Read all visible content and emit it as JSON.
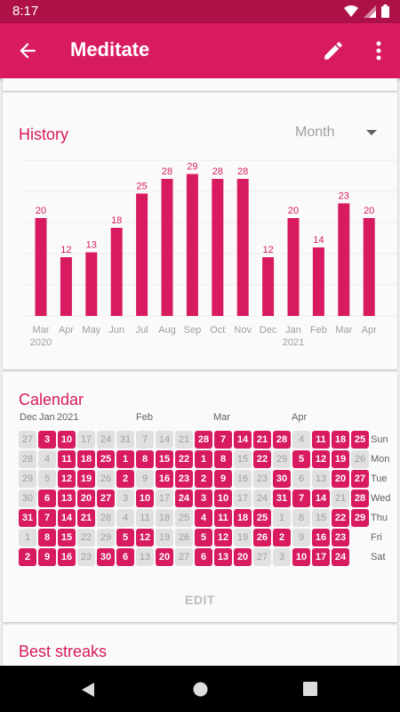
{
  "status_bar": {
    "time": "8:17"
  },
  "app_bar": {
    "title": "Meditate",
    "back_icon": "arrow-left-icon",
    "edit_icon": "pencil-icon",
    "more_icon": "more-vert-icon"
  },
  "history": {
    "title": "History",
    "period_select": "Month",
    "chart_data": {
      "type": "bar",
      "categories": [
        "Mar",
        "Apr",
        "May",
        "Jun",
        "Jul",
        "Aug",
        "Sep",
        "Oct",
        "Nov",
        "Dec",
        "Jan",
        "Feb",
        "Mar",
        "Apr"
      ],
      "year_labels": [
        "2020",
        "",
        "",
        "",
        "",
        "",
        "",
        "",
        "",
        "",
        "2021",
        "",
        "",
        ""
      ],
      "values": [
        20,
        12,
        13,
        18,
        25,
        28,
        29,
        28,
        28,
        12,
        20,
        14,
        23,
        20
      ],
      "ylim": [
        0,
        30
      ],
      "bar_color": "#d81b60",
      "grid": true
    }
  },
  "calendar": {
    "title": "Calendar",
    "month_labels": [
      "Dec",
      "Jan",
      "2021",
      "Feb",
      "Mar",
      "Apr"
    ],
    "weekdays": [
      "Sun",
      "Mon",
      "Tue",
      "Wed",
      "Thu",
      "Fri",
      "Sat"
    ],
    "rows": [
      [
        [
          "27",
          0
        ],
        [
          "3",
          1
        ],
        [
          "10",
          1
        ],
        [
          "17",
          0
        ],
        [
          "24",
          0
        ],
        [
          "31",
          0
        ],
        [
          "7",
          0
        ],
        [
          "14",
          0
        ],
        [
          "21",
          0
        ],
        [
          "28",
          1
        ],
        [
          "7",
          1
        ],
        [
          "14",
          1
        ],
        [
          "21",
          1
        ],
        [
          "28",
          1
        ],
        [
          "4",
          0
        ],
        [
          "11",
          1
        ],
        [
          "18",
          1
        ],
        [
          "25",
          1
        ]
      ],
      [
        [
          "28",
          0
        ],
        [
          "4",
          0
        ],
        [
          "11",
          1
        ],
        [
          "18",
          1
        ],
        [
          "25",
          1
        ],
        [
          "1",
          1
        ],
        [
          "8",
          1
        ],
        [
          "15",
          1
        ],
        [
          "22",
          1
        ],
        [
          "1",
          1
        ],
        [
          "8",
          1
        ],
        [
          "15",
          0
        ],
        [
          "22",
          1
        ],
        [
          "29",
          0
        ],
        [
          "5",
          1
        ],
        [
          "12",
          1
        ],
        [
          "19",
          1
        ],
        [
          "26",
          0
        ]
      ],
      [
        [
          "29",
          0
        ],
        [
          "5",
          0
        ],
        [
          "12",
          1
        ],
        [
          "19",
          1
        ],
        [
          "26",
          0
        ],
        [
          "2",
          1
        ],
        [
          "9",
          0
        ],
        [
          "16",
          1
        ],
        [
          "23",
          1
        ],
        [
          "2",
          1
        ],
        [
          "9",
          1
        ],
        [
          "16",
          0
        ],
        [
          "23",
          0
        ],
        [
          "30",
          1
        ],
        [
          "6",
          0
        ],
        [
          "13",
          0
        ],
        [
          "20",
          1
        ],
        [
          "27",
          1
        ]
      ],
      [
        [
          "30",
          0
        ],
        [
          "6",
          1
        ],
        [
          "13",
          1
        ],
        [
          "20",
          1
        ],
        [
          "27",
          1
        ],
        [
          "3",
          0
        ],
        [
          "10",
          1
        ],
        [
          "17",
          0
        ],
        [
          "24",
          1
        ],
        [
          "3",
          1
        ],
        [
          "10",
          1
        ],
        [
          "17",
          0
        ],
        [
          "24",
          0
        ],
        [
          "31",
          1
        ],
        [
          "7",
          1
        ],
        [
          "14",
          1
        ],
        [
          "21",
          0
        ],
        [
          "28",
          1
        ]
      ],
      [
        [
          "31",
          1
        ],
        [
          "7",
          1
        ],
        [
          "14",
          1
        ],
        [
          "21",
          1
        ],
        [
          "28",
          0
        ],
        [
          "4",
          0
        ],
        [
          "11",
          0
        ],
        [
          "18",
          0
        ],
        [
          "25",
          0
        ],
        [
          "4",
          1
        ],
        [
          "11",
          1
        ],
        [
          "18",
          1
        ],
        [
          "25",
          1
        ],
        [
          "1",
          0
        ],
        [
          "8",
          0
        ],
        [
          "15",
          0
        ],
        [
          "22",
          1
        ],
        [
          "29",
          1
        ]
      ],
      [
        [
          "1",
          0
        ],
        [
          "8",
          1
        ],
        [
          "15",
          1
        ],
        [
          "22",
          0
        ],
        [
          "29",
          0
        ],
        [
          "5",
          1
        ],
        [
          "12",
          1
        ],
        [
          "19",
          0
        ],
        [
          "26",
          0
        ],
        [
          "5",
          1
        ],
        [
          "12",
          1
        ],
        [
          "19",
          0
        ],
        [
          "26",
          1
        ],
        [
          "2",
          1
        ],
        [
          "9",
          0
        ],
        [
          "16",
          1
        ],
        [
          "23",
          1
        ],
        [
          "",
          -1
        ]
      ],
      [
        [
          "2",
          1
        ],
        [
          "9",
          1
        ],
        [
          "16",
          1
        ],
        [
          "23",
          0
        ],
        [
          "30",
          1
        ],
        [
          "6",
          1
        ],
        [
          "13",
          0
        ],
        [
          "20",
          1
        ],
        [
          "27",
          0
        ],
        [
          "6",
          1
        ],
        [
          "13",
          1
        ],
        [
          "20",
          1
        ],
        [
          "27",
          0
        ],
        [
          "3",
          0
        ],
        [
          "10",
          1
        ],
        [
          "17",
          1
        ],
        [
          "24",
          1
        ],
        [
          "",
          -1
        ]
      ]
    ],
    "edit_label": "EDIT",
    "colors": {
      "checked": "#d81b60",
      "unchecked": "#e0e0e0",
      "checked_text": "#ffffff",
      "unchecked_text": "#9e9e9e"
    }
  },
  "best_streaks": {
    "title": "Best streaks"
  },
  "nav_bar": {
    "back_icon": "nav-back-icon",
    "home_icon": "nav-home-icon",
    "recents_icon": "nav-recents-icon"
  }
}
